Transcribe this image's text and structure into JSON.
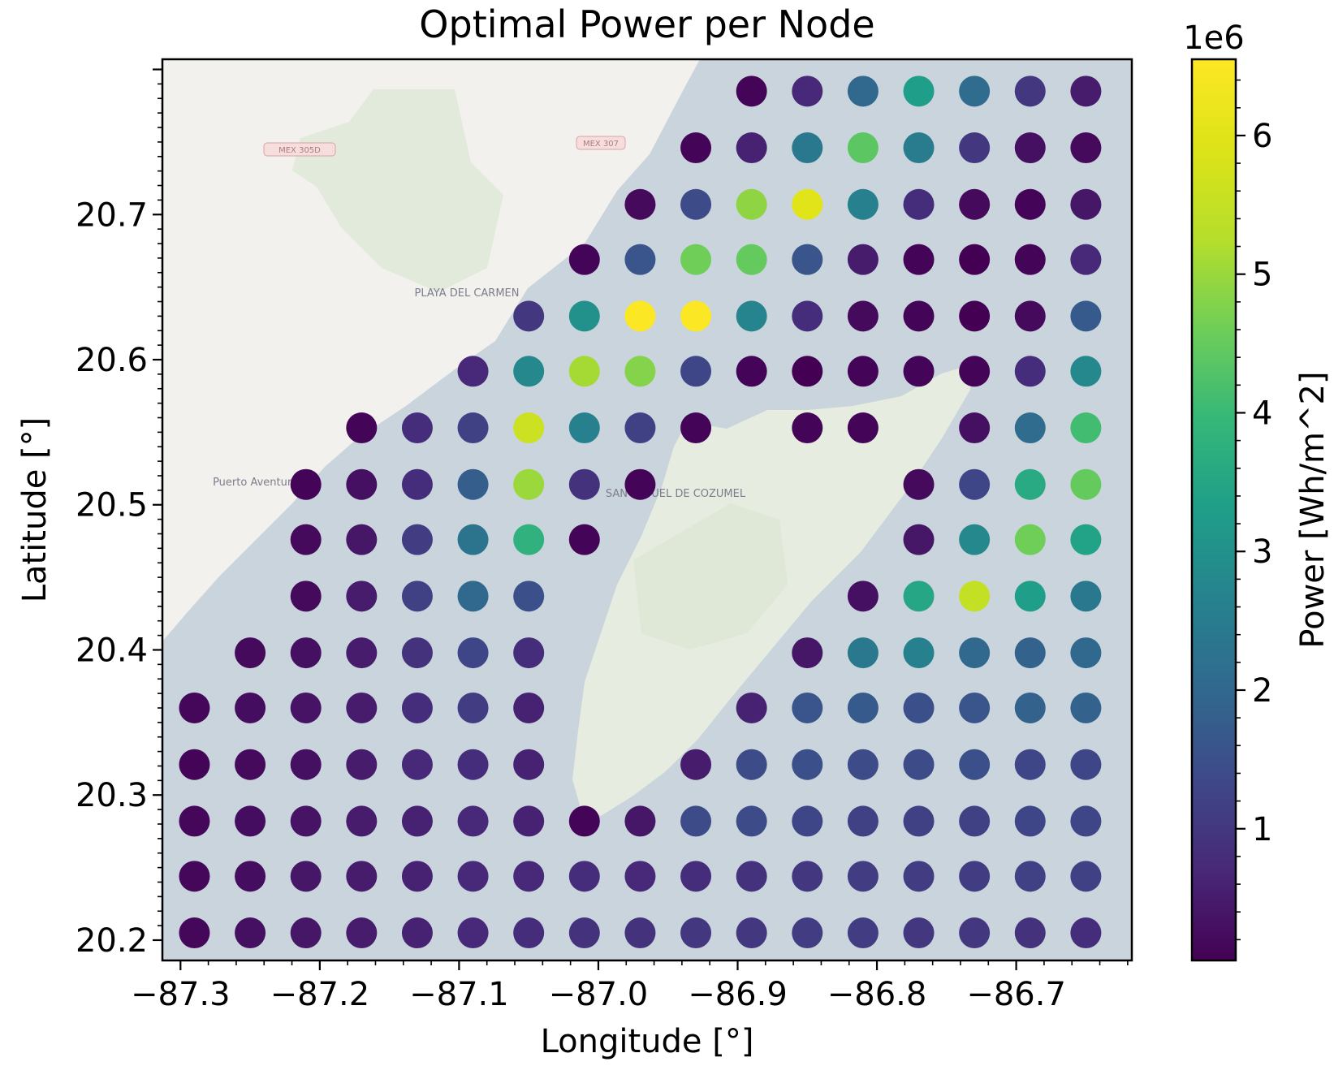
{
  "chart_data": {
    "type": "scatter",
    "title": "Optimal Power per Node",
    "xlabel": "Longitude [°]",
    "ylabel": "Latitude [°]",
    "xlim": [
      -87.313,
      -86.617
    ],
    "ylim": [
      20.186,
      20.807
    ],
    "xticks": [
      -87.3,
      -87.2,
      -87.1,
      -87.0,
      -86.9,
      -86.8,
      -86.7
    ],
    "xtick_labels": [
      "−87.3",
      "−87.2",
      "−87.1",
      "−87.0",
      "−86.9",
      "−86.8",
      "−86.7"
    ],
    "yticks": [
      20.2,
      20.3,
      20.4,
      20.5,
      20.6,
      20.7
    ],
    "ytick_labels": [
      "20.2",
      "20.3",
      "20.4",
      "20.5",
      "20.6",
      "20.7"
    ],
    "grid": false,
    "background": "map",
    "map_labels": [
      "PLAYA DEL CARMEN",
      "Puerto Aventuras",
      "SAN MIGUEL DE COZUMEL",
      "MEX 305D",
      "MEX 307"
    ],
    "colorbar": {
      "label": "Power [Wh/m^2]",
      "scale_label": "1e6",
      "colormap": "viridis",
      "range": [
        0.05,
        6.55
      ],
      "ticks": [
        1,
        2,
        3,
        4,
        5,
        6
      ],
      "tick_labels": [
        "1",
        "2",
        "3",
        "4",
        "5",
        "6"
      ]
    },
    "grid_x": [
      -87.29,
      -87.25,
      -87.21,
      -87.17,
      -87.13,
      -87.09,
      -87.05,
      -87.01,
      -86.97,
      -86.93,
      -86.89,
      -86.85,
      -86.81,
      -86.77,
      -86.73,
      -86.69,
      -86.65
    ],
    "grid_y": [
      20.785,
      20.746,
      20.707,
      20.669,
      20.63,
      20.592,
      20.553,
      20.514,
      20.476,
      20.437,
      20.398,
      20.36,
      20.321,
      20.282,
      20.244,
      20.205
    ],
    "power_rows": [
      [
        null,
        null,
        null,
        null,
        null,
        null,
        null,
        null,
        null,
        null,
        0.1,
        0.7,
        2.0,
        3.3,
        2.1,
        1.0,
        0.5
      ],
      [
        null,
        null,
        null,
        null,
        null,
        null,
        null,
        null,
        null,
        0.1,
        0.6,
        2.4,
        4.4,
        2.5,
        1.0,
        0.3,
        0.2
      ],
      [
        null,
        null,
        null,
        null,
        null,
        null,
        null,
        null,
        0.2,
        1.4,
        4.9,
        6.0,
        2.6,
        0.8,
        0.2,
        0.1,
        0.4
      ],
      [
        null,
        null,
        null,
        null,
        null,
        null,
        null,
        0.1,
        1.6,
        4.6,
        4.5,
        1.6,
        0.5,
        0.1,
        0.05,
        0.1,
        0.7
      ],
      [
        null,
        null,
        null,
        null,
        null,
        null,
        1.0,
        3.0,
        6.5,
        6.5,
        2.7,
        0.8,
        0.2,
        0.1,
        0.05,
        0.2,
        1.7
      ],
      [
        null,
        null,
        null,
        null,
        null,
        0.7,
        2.8,
        5.1,
        4.8,
        1.3,
        0.1,
        0.05,
        0.1,
        0.1,
        0.1,
        0.8,
        2.8
      ],
      [
        null,
        null,
        null,
        0.1,
        0.8,
        1.2,
        5.6,
        2.6,
        1.2,
        0.1,
        null,
        0.1,
        0.1,
        null,
        0.3,
        2.1,
        4.1
      ],
      [
        null,
        null,
        0.1,
        0.3,
        0.8,
        1.8,
        5.0,
        0.9,
        0.1,
        null,
        null,
        null,
        null,
        0.2,
        1.3,
        3.6,
        4.5
      ],
      [
        null,
        null,
        0.2,
        0.4,
        1.1,
        2.3,
        3.8,
        0.1,
        null,
        null,
        null,
        null,
        null,
        0.4,
        2.8,
        4.6,
        3.4
      ],
      [
        null,
        null,
        0.2,
        0.5,
        1.2,
        2.0,
        1.5,
        null,
        null,
        null,
        null,
        null,
        0.3,
        3.5,
        5.5,
        3.3,
        2.4
      ],
      [
        null,
        0.2,
        0.3,
        0.5,
        0.9,
        1.3,
        0.8,
        null,
        null,
        null,
        null,
        0.4,
        2.4,
        2.6,
        2.0,
        1.9,
        2.0
      ],
      [
        0.15,
        0.25,
        0.35,
        0.5,
        0.8,
        1.1,
        0.6,
        null,
        null,
        null,
        0.6,
        1.6,
        1.7,
        1.5,
        1.6,
        1.9,
        1.9
      ],
      [
        0.1,
        0.2,
        0.3,
        0.5,
        0.7,
        0.8,
        0.6,
        null,
        null,
        0.5,
        1.4,
        1.5,
        1.4,
        1.4,
        1.5,
        1.3,
        1.3
      ],
      [
        0.15,
        0.25,
        0.35,
        0.5,
        0.6,
        0.7,
        0.6,
        0.1,
        0.4,
        1.4,
        1.4,
        1.3,
        1.2,
        1.2,
        1.2,
        1.3,
        1.3
      ],
      [
        0.15,
        0.25,
        0.4,
        0.5,
        0.6,
        0.7,
        0.7,
        0.8,
        0.7,
        0.8,
        0.9,
        1.0,
        1.1,
        1.1,
        1.1,
        1.2,
        1.2
      ],
      [
        0.15,
        0.3,
        0.4,
        0.5,
        0.6,
        0.7,
        0.8,
        0.9,
        0.9,
        1.0,
        1.0,
        1.1,
        1.1,
        1.0,
        1.0,
        0.9,
        0.8
      ]
    ]
  }
}
